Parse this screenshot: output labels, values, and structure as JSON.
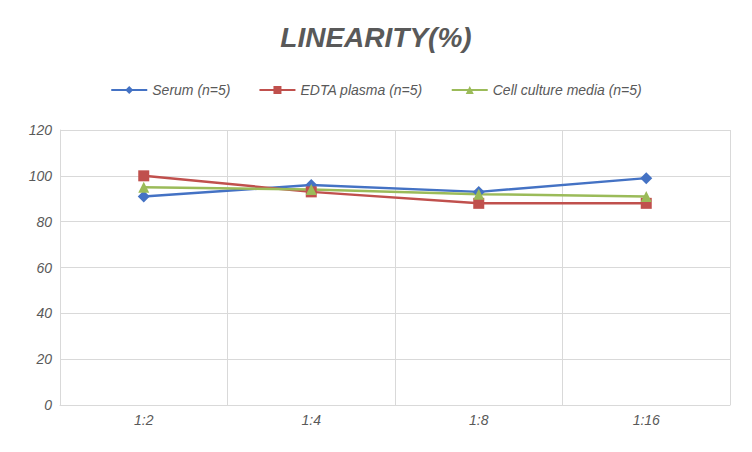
{
  "chart_data": {
    "type": "line",
    "title": "LINEARITY(%)",
    "categories": [
      "1:2",
      "1:4",
      "1:8",
      "1:16"
    ],
    "series": [
      {
        "name": "Serum (n=5)",
        "color": "#4472c4",
        "marker": "diamond",
        "values": [
          91,
          96,
          93,
          99
        ]
      },
      {
        "name": "EDTA plasma (n=5)",
        "color": "#c0504d",
        "marker": "square",
        "values": [
          100,
          93,
          88,
          88
        ]
      },
      {
        "name": "Cell culture media (n=5)",
        "color": "#9bbb59",
        "marker": "triangle",
        "values": [
          95,
          94,
          92,
          91
        ]
      }
    ],
    "ylim": [
      0,
      120
    ],
    "yticks": [
      0,
      20,
      40,
      60,
      80,
      100,
      120
    ],
    "grid": true,
    "legend": "top"
  }
}
